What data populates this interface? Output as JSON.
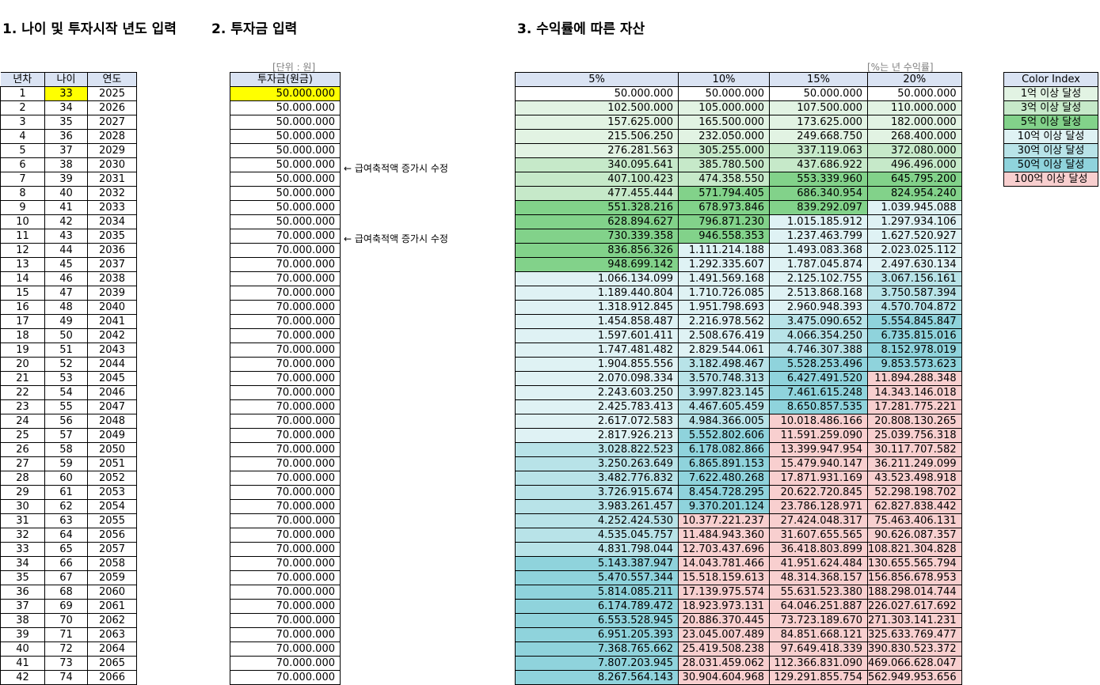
{
  "titles": {
    "t1": "1. 나이 및 투자시작 년도 입력",
    "t2": "2. 투자금 입력",
    "t3": "3. 수익률에 따른 자산"
  },
  "unit_won": "[단위 : 원]",
  "unit_rate": "[%는 년 수익률]",
  "notes": [
    "← 급여축적액 증가시 수정",
    "← 급여축적액 증가시 수정"
  ],
  "left_headers": [
    "년차",
    "나이",
    "연도"
  ],
  "invest_header": "투자금(원금)",
  "rate_headers": [
    "5%",
    "10%",
    "15%",
    "20%"
  ],
  "color_index_header": "Color Index",
  "color_index": [
    {
      "label": "1억 이상 달성",
      "color": "#e2f3e3"
    },
    {
      "label": "3억 이상 달성",
      "color": "#c6e9c9"
    },
    {
      "label": "5억 이상 달성",
      "color": "#82d28a"
    },
    {
      "label": "10억 이상 달성",
      "color": "#dff2f4"
    },
    {
      "label": "30억 이상 달성",
      "color": "#b8e3e8"
    },
    {
      "label": "50억 이상 달성",
      "color": "#8fd3dc"
    },
    {
      "label": "100억 이상 달성",
      "color": "#f8cfcf"
    }
  ],
  "rows": [
    {
      "n": "1",
      "age": "33",
      "year": "2025",
      "inv": "50.000.000",
      "r": [
        "50.000.000",
        "50.000.000",
        "50.000.000",
        "50.000.000"
      ]
    },
    {
      "n": "2",
      "age": "34",
      "year": "2026",
      "inv": "50.000.000",
      "r": [
        "102.500.000",
        "105.000.000",
        "107.500.000",
        "110.000.000"
      ]
    },
    {
      "n": "3",
      "age": "35",
      "year": "2027",
      "inv": "50.000.000",
      "r": [
        "157.625.000",
        "165.500.000",
        "173.625.000",
        "182.000.000"
      ]
    },
    {
      "n": "4",
      "age": "36",
      "year": "2028",
      "inv": "50.000.000",
      "r": [
        "215.506.250",
        "232.050.000",
        "249.668.750",
        "268.400.000"
      ]
    },
    {
      "n": "5",
      "age": "37",
      "year": "2029",
      "inv": "50.000.000",
      "r": [
        "276.281.563",
        "305.255.000",
        "337.119.063",
        "372.080.000"
      ]
    },
    {
      "n": "6",
      "age": "38",
      "year": "2030",
      "inv": "50.000.000",
      "r": [
        "340.095.641",
        "385.780.500",
        "437.686.922",
        "496.496.000"
      ]
    },
    {
      "n": "7",
      "age": "39",
      "year": "2031",
      "inv": "50.000.000",
      "r": [
        "407.100.423",
        "474.358.550",
        "553.339.960",
        "645.795.200"
      ]
    },
    {
      "n": "8",
      "age": "40",
      "year": "2032",
      "inv": "50.000.000",
      "r": [
        "477.455.444",
        "571.794.405",
        "686.340.954",
        "824.954.240"
      ]
    },
    {
      "n": "9",
      "age": "41",
      "year": "2033",
      "inv": "50.000.000",
      "r": [
        "551.328.216",
        "678.973.846",
        "839.292.097",
        "1.039.945.088"
      ]
    },
    {
      "n": "10",
      "age": "42",
      "year": "2034",
      "inv": "50.000.000",
      "r": [
        "628.894.627",
        "796.871.230",
        "1.015.185.912",
        "1.297.934.106"
      ]
    },
    {
      "n": "11",
      "age": "43",
      "year": "2035",
      "inv": "70.000.000",
      "r": [
        "730.339.358",
        "946.558.353",
        "1.237.463.799",
        "1.627.520.927"
      ]
    },
    {
      "n": "12",
      "age": "44",
      "year": "2036",
      "inv": "70.000.000",
      "r": [
        "836.856.326",
        "1.111.214.188",
        "1.493.083.368",
        "2.023.025.112"
      ]
    },
    {
      "n": "13",
      "age": "45",
      "year": "2037",
      "inv": "70.000.000",
      "r": [
        "948.699.142",
        "1.292.335.607",
        "1.787.045.874",
        "2.497.630.134"
      ]
    },
    {
      "n": "14",
      "age": "46",
      "year": "2038",
      "inv": "70.000.000",
      "r": [
        "1.066.134.099",
        "1.491.569.168",
        "2.125.102.755",
        "3.067.156.161"
      ]
    },
    {
      "n": "15",
      "age": "47",
      "year": "2039",
      "inv": "70.000.000",
      "r": [
        "1.189.440.804",
        "1.710.726.085",
        "2.513.868.168",
        "3.750.587.394"
      ]
    },
    {
      "n": "16",
      "age": "48",
      "year": "2040",
      "inv": "70.000.000",
      "r": [
        "1.318.912.845",
        "1.951.798.693",
        "2.960.948.393",
        "4.570.704.872"
      ]
    },
    {
      "n": "17",
      "age": "49",
      "year": "2041",
      "inv": "70.000.000",
      "r": [
        "1.454.858.487",
        "2.216.978.562",
        "3.475.090.652",
        "5.554.845.847"
      ]
    },
    {
      "n": "18",
      "age": "50",
      "year": "2042",
      "inv": "70.000.000",
      "r": [
        "1.597.601.411",
        "2.508.676.419",
        "4.066.354.250",
        "6.735.815.016"
      ]
    },
    {
      "n": "19",
      "age": "51",
      "year": "2043",
      "inv": "70.000.000",
      "r": [
        "1.747.481.482",
        "2.829.544.061",
        "4.746.307.388",
        "8.152.978.019"
      ]
    },
    {
      "n": "20",
      "age": "52",
      "year": "2044",
      "inv": "70.000.000",
      "r": [
        "1.904.855.556",
        "3.182.498.467",
        "5.528.253.496",
        "9.853.573.623"
      ]
    },
    {
      "n": "21",
      "age": "53",
      "year": "2045",
      "inv": "70.000.000",
      "r": [
        "2.070.098.334",
        "3.570.748.313",
        "6.427.491.520",
        "11.894.288.348"
      ]
    },
    {
      "n": "22",
      "age": "54",
      "year": "2046",
      "inv": "70.000.000",
      "r": [
        "2.243.603.250",
        "3.997.823.145",
        "7.461.615.248",
        "14.343.146.018"
      ]
    },
    {
      "n": "23",
      "age": "55",
      "year": "2047",
      "inv": "70.000.000",
      "r": [
        "2.425.783.413",
        "4.467.605.459",
        "8.650.857.535",
        "17.281.775.221"
      ]
    },
    {
      "n": "24",
      "age": "56",
      "year": "2048",
      "inv": "70.000.000",
      "r": [
        "2.617.072.583",
        "4.984.366.005",
        "10.018.486.166",
        "20.808.130.265"
      ]
    },
    {
      "n": "25",
      "age": "57",
      "year": "2049",
      "inv": "70.000.000",
      "r": [
        "2.817.926.213",
        "5.552.802.606",
        "11.591.259.090",
        "25.039.756.318"
      ]
    },
    {
      "n": "26",
      "age": "58",
      "year": "2050",
      "inv": "70.000.000",
      "r": [
        "3.028.822.523",
        "6.178.082.866",
        "13.399.947.954",
        "30.117.707.582"
      ]
    },
    {
      "n": "27",
      "age": "59",
      "year": "2051",
      "inv": "70.000.000",
      "r": [
        "3.250.263.649",
        "6.865.891.153",
        "15.479.940.147",
        "36.211.249.099"
      ]
    },
    {
      "n": "28",
      "age": "60",
      "year": "2052",
      "inv": "70.000.000",
      "r": [
        "3.482.776.832",
        "7.622.480.268",
        "17.871.931.169",
        "43.523.498.918"
      ]
    },
    {
      "n": "29",
      "age": "61",
      "year": "2053",
      "inv": "70.000.000",
      "r": [
        "3.726.915.674",
        "8.454.728.295",
        "20.622.720.845",
        "52.298.198.702"
      ]
    },
    {
      "n": "30",
      "age": "62",
      "year": "2054",
      "inv": "70.000.000",
      "r": [
        "3.983.261.457",
        "9.370.201.124",
        "23.786.128.971",
        "62.827.838.442"
      ]
    },
    {
      "n": "31",
      "age": "63",
      "year": "2055",
      "inv": "70.000.000",
      "r": [
        "4.252.424.530",
        "10.377.221.237",
        "27.424.048.317",
        "75.463.406.131"
      ]
    },
    {
      "n": "32",
      "age": "64",
      "year": "2056",
      "inv": "70.000.000",
      "r": [
        "4.535.045.757",
        "11.484.943.360",
        "31.607.655.565",
        "90.626.087.357"
      ]
    },
    {
      "n": "33",
      "age": "65",
      "year": "2057",
      "inv": "70.000.000",
      "r": [
        "4.831.798.044",
        "12.703.437.696",
        "36.418.803.899",
        "108.821.304.828"
      ]
    },
    {
      "n": "34",
      "age": "66",
      "year": "2058",
      "inv": "70.000.000",
      "r": [
        "5.143.387.947",
        "14.043.781.466",
        "41.951.624.484",
        "130.655.565.794"
      ]
    },
    {
      "n": "35",
      "age": "67",
      "year": "2059",
      "inv": "70.000.000",
      "r": [
        "5.470.557.344",
        "15.518.159.613",
        "48.314.368.157",
        "156.856.678.953"
      ]
    },
    {
      "n": "36",
      "age": "68",
      "year": "2060",
      "inv": "70.000.000",
      "r": [
        "5.814.085.211",
        "17.139.975.574",
        "55.631.523.380",
        "188.298.014.744"
      ]
    },
    {
      "n": "37",
      "age": "69",
      "year": "2061",
      "inv": "70.000.000",
      "r": [
        "6.174.789.472",
        "18.923.973.131",
        "64.046.251.887",
        "226.027.617.692"
      ]
    },
    {
      "n": "38",
      "age": "70",
      "year": "2062",
      "inv": "70.000.000",
      "r": [
        "6.553.528.945",
        "20.886.370.445",
        "73.723.189.670",
        "271.303.141.231"
      ]
    },
    {
      "n": "39",
      "age": "71",
      "year": "2063",
      "inv": "70.000.000",
      "r": [
        "6.951.205.393",
        "23.045.007.489",
        "84.851.668.121",
        "325.633.769.477"
      ]
    },
    {
      "n": "40",
      "age": "72",
      "year": "2064",
      "inv": "70.000.000",
      "r": [
        "7.368.765.662",
        "25.419.508.238",
        "97.649.418.339",
        "390.830.523.372"
      ]
    },
    {
      "n": "41",
      "age": "73",
      "year": "2065",
      "inv": "70.000.000",
      "r": [
        "7.807.203.945",
        "28.031.459.062",
        "112.366.831.090",
        "469.066.628.047"
      ]
    },
    {
      "n": "42",
      "age": "74",
      "year": "2066",
      "inv": "70.000.000",
      "r": [
        "8.267.564.143",
        "30.904.604.968",
        "129.291.855.754",
        "562.949.953.656"
      ]
    }
  ]
}
